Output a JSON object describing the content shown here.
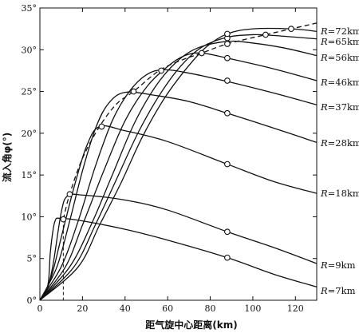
{
  "chart_data": {
    "type": "line",
    "xlabel": "距气旋中心距离(km)",
    "ylabel": "流入角φ(°)",
    "xlim": [
      0,
      130
    ],
    "ylim": [
      0,
      35
    ],
    "x_ticks": [
      "0",
      "20",
      "40",
      "60",
      "80",
      "100",
      "120"
    ],
    "y_ticks": [
      "0°",
      "5°",
      "10°",
      "15°",
      "20°",
      "25°",
      "30°",
      "35°"
    ],
    "axis_ticks_both_sides": true,
    "grid": false,
    "series": [
      {
        "name": "R=7km",
        "label_prefix": "R",
        "label_value": "=7km",
        "points": [
          [
            0,
            0
          ],
          [
            2,
            0.6
          ],
          [
            4,
            2.2
          ],
          [
            5,
            6
          ],
          [
            7,
            9.4
          ],
          [
            10,
            9.8
          ],
          [
            20,
            9.5
          ],
          [
            40,
            8.5
          ],
          [
            60,
            7.2
          ],
          [
            88,
            5.1
          ],
          [
            110,
            3.1
          ],
          [
            130,
            1.6
          ]
        ]
      },
      {
        "name": "R=9km",
        "label_prefix": "R",
        "label_value": "=9km",
        "points": [
          [
            0,
            0
          ],
          [
            3,
            1
          ],
          [
            6,
            4
          ],
          [
            10,
            10.5
          ],
          [
            13,
            12.5
          ],
          [
            20,
            12.6
          ],
          [
            40,
            12
          ],
          [
            60,
            10.8
          ],
          [
            88,
            8.2
          ],
          [
            110,
            6.3
          ],
          [
            130,
            4.4
          ]
        ]
      },
      {
        "name": "R=18km",
        "label_prefix": "R",
        "label_value": "=18km",
        "points": [
          [
            0,
            0
          ],
          [
            5,
            2.5
          ],
          [
            10,
            7.5
          ],
          [
            16,
            13.5
          ],
          [
            22,
            18.5
          ],
          [
            28,
            20.8
          ],
          [
            40,
            20.3
          ],
          [
            60,
            19
          ],
          [
            88,
            16.3
          ],
          [
            110,
            14.2
          ],
          [
            130,
            12.8
          ]
        ]
      },
      {
        "name": "R=28km",
        "label_prefix": "R",
        "label_value": "=28km",
        "points": [
          [
            0,
            0
          ],
          [
            8,
            4
          ],
          [
            14,
            9.5
          ],
          [
            20,
            15.5
          ],
          [
            26,
            20.5
          ],
          [
            32,
            23.5
          ],
          [
            40,
            24.9
          ],
          [
            55,
            24.5
          ],
          [
            70,
            23.8
          ],
          [
            88,
            22.4
          ],
          [
            110,
            20.6
          ],
          [
            130,
            18.9
          ]
        ]
      },
      {
        "name": "R=37km",
        "label_prefix": "R",
        "label_value": "=37km",
        "points": [
          [
            0,
            0
          ],
          [
            10,
            4
          ],
          [
            18,
            9.5
          ],
          [
            26,
            16
          ],
          [
            34,
            21.5
          ],
          [
            42,
            25
          ],
          [
            50,
            27
          ],
          [
            58,
            27.6
          ],
          [
            70,
            27.2
          ],
          [
            88,
            26.2
          ],
          [
            110,
            24.8
          ],
          [
            130,
            23.4
          ]
        ]
      },
      {
        "name": "R=46km",
        "label_prefix": "R",
        "label_value": "=46km",
        "points": [
          [
            0,
            0
          ],
          [
            12,
            4
          ],
          [
            20,
            9
          ],
          [
            30,
            15.5
          ],
          [
            40,
            21.5
          ],
          [
            50,
            25.5
          ],
          [
            60,
            28
          ],
          [
            68,
            29.3
          ],
          [
            76,
            29.6
          ],
          [
            88,
            29
          ],
          [
            110,
            27.7
          ],
          [
            130,
            26.3
          ]
        ]
      },
      {
        "name": "R=56km",
        "label_prefix": "R",
        "label_value": "=56km",
        "points": [
          [
            0,
            0
          ],
          [
            14,
            4
          ],
          [
            24,
            9
          ],
          [
            34,
            15
          ],
          [
            44,
            21
          ],
          [
            54,
            25.5
          ],
          [
            64,
            28.5
          ],
          [
            74,
            30.2
          ],
          [
            88,
            31
          ],
          [
            100,
            30.8
          ],
          [
            115,
            30.2
          ],
          [
            130,
            29.3
          ]
        ]
      },
      {
        "name": "R=65km",
        "label_prefix": "R",
        "label_value": "=65km",
        "points": [
          [
            0,
            0
          ],
          [
            16,
            4
          ],
          [
            26,
            9
          ],
          [
            36,
            14.5
          ],
          [
            46,
            20
          ],
          [
            56,
            24.5
          ],
          [
            66,
            28
          ],
          [
            76,
            30.3
          ],
          [
            88,
            31.5
          ],
          [
            100,
            31.8
          ],
          [
            110,
            31.7
          ],
          [
            130,
            31.3
          ]
        ]
      },
      {
        "name": "R=72km",
        "label_prefix": "R",
        "label_value": "=72km",
        "points": [
          [
            0,
            0
          ],
          [
            18,
            4
          ],
          [
            28,
            9
          ],
          [
            38,
            14
          ],
          [
            48,
            19.5
          ],
          [
            58,
            24
          ],
          [
            68,
            27.5
          ],
          [
            78,
            30.3
          ],
          [
            88,
            31.9
          ],
          [
            100,
            32.5
          ],
          [
            118,
            32.5
          ],
          [
            130,
            32.2
          ]
        ]
      }
    ],
    "dashed_envelope": [
      [
        11,
        9.7
      ],
      [
        14,
        12.7
      ],
      [
        20,
        17
      ],
      [
        28,
        20.8
      ],
      [
        36,
        23.5
      ],
      [
        44,
        25
      ],
      [
        56,
        27.5
      ],
      [
        67,
        28.8
      ],
      [
        76,
        29.6
      ],
      [
        88,
        30.7
      ],
      [
        106,
        31.8
      ],
      [
        118,
        32.5
      ],
      [
        130,
        33.2
      ]
    ],
    "circle_markers": [
      [
        11,
        9.7
      ],
      [
        14,
        12.7
      ],
      [
        29,
        20.8
      ],
      [
        44,
        25
      ],
      [
        57,
        27.5
      ],
      [
        76,
        29.6
      ],
      [
        88,
        30.7
      ],
      [
        106,
        31.8
      ],
      [
        118,
        32.5
      ],
      [
        88,
        5.1
      ],
      [
        88,
        8.2
      ],
      [
        88,
        16.3
      ],
      [
        88,
        22.4
      ],
      [
        88,
        26.3
      ],
      [
        88,
        29
      ],
      [
        88,
        31.4
      ],
      [
        88,
        31.9
      ]
    ],
    "vertical_dashed_x": 11
  }
}
